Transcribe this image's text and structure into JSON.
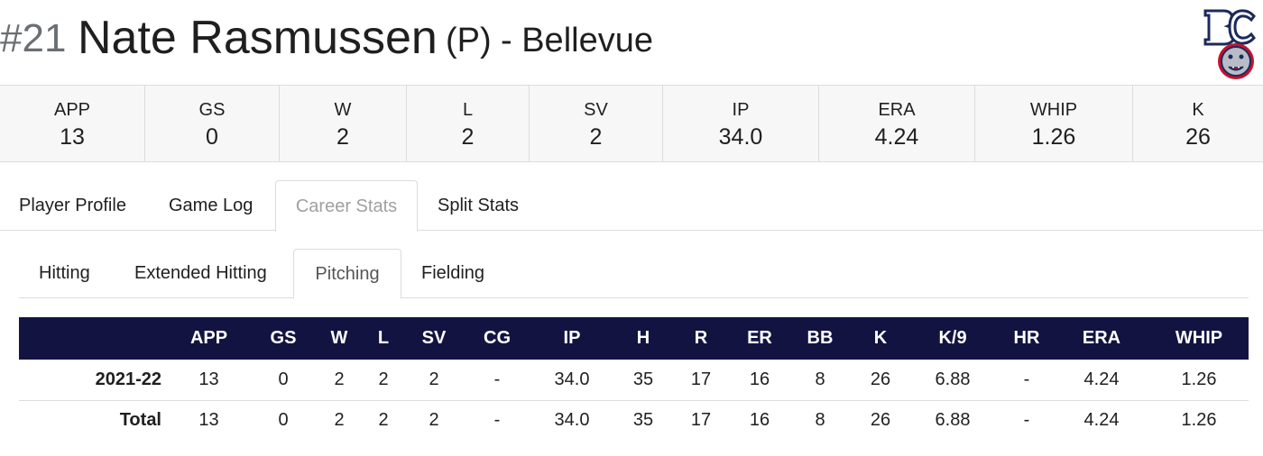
{
  "header": {
    "number": "#21",
    "name": "Nate Rasmussen",
    "position": "(P)",
    "team": "- Bellevue"
  },
  "summary": [
    {
      "label": "APP",
      "value": "13"
    },
    {
      "label": "GS",
      "value": "0"
    },
    {
      "label": "W",
      "value": "2"
    },
    {
      "label": "L",
      "value": "2"
    },
    {
      "label": "SV",
      "value": "2"
    },
    {
      "label": "IP",
      "value": "34.0"
    },
    {
      "label": "ERA",
      "value": "4.24"
    },
    {
      "label": "WHIP",
      "value": "1.26"
    },
    {
      "label": "K",
      "value": "26"
    }
  ],
  "tabs": [
    "Player Profile",
    "Game Log",
    "Career Stats",
    "Split Stats"
  ],
  "subtabs": [
    "Hitting",
    "Extended Hitting",
    "Pitching",
    "Fielding"
  ],
  "table": {
    "columns": [
      "",
      "APP",
      "GS",
      "W",
      "L",
      "SV",
      "CG",
      "IP",
      "H",
      "R",
      "ER",
      "BB",
      "K",
      "K/9",
      "HR",
      "ERA",
      "WHIP"
    ],
    "rows": [
      [
        "2021-22",
        "13",
        "0",
        "2",
        "2",
        "2",
        "-",
        "34.0",
        "35",
        "17",
        "16",
        "8",
        "26",
        "6.88",
        "-",
        "4.24",
        "1.26"
      ],
      [
        "Total",
        "13",
        "0",
        "2",
        "2",
        "2",
        "-",
        "34.0",
        "35",
        "17",
        "16",
        "8",
        "26",
        "6.88",
        "-",
        "4.24",
        "1.26"
      ]
    ]
  },
  "colors": {
    "table_header_bg": "#131342",
    "logo_navy": "#1c2a5a",
    "logo_red": "#c8102e"
  }
}
